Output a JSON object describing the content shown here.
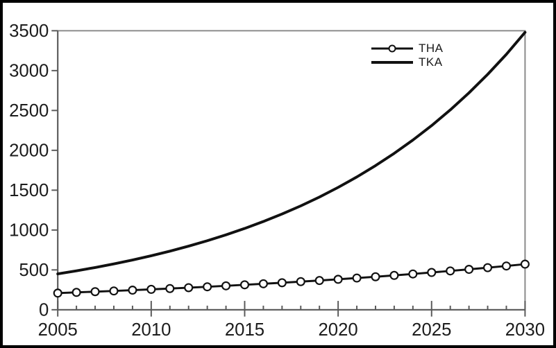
{
  "colors": {
    "background": "#ffffff",
    "outer_border": "#000000",
    "frame_line": "#8a8a8a",
    "axis_line": "#5a5a5a",
    "tick_line": "#5a5a5a",
    "tick_label": "#1c1c1c",
    "series_line": "#111111",
    "marker_fill": "#ffffff",
    "marker_stroke": "#111111"
  },
  "chart_data": {
    "type": "line",
    "title": "",
    "xlabel": "",
    "ylabel": "",
    "grid": false,
    "legend_position": "top-right-inside",
    "xlim": [
      2005,
      2030
    ],
    "ylim": [
      0,
      3500
    ],
    "x_major_ticks": [
      2005,
      2010,
      2015,
      2020,
      2025,
      2030
    ],
    "x_minor_tick_step": 1,
    "y_ticks": [
      0,
      500,
      1000,
      1500,
      2000,
      2500,
      3000,
      3500
    ],
    "x": [
      2005,
      2006,
      2007,
      2008,
      2009,
      2010,
      2011,
      2012,
      2013,
      2014,
      2015,
      2016,
      2017,
      2018,
      2019,
      2020,
      2021,
      2022,
      2023,
      2024,
      2025,
      2026,
      2027,
      2028,
      2029,
      2030
    ],
    "series": [
      {
        "name": "THA",
        "marker": "circle",
        "line_width": 3,
        "values": [
          209,
          218,
          227,
          236,
          246,
          256,
          266,
          277,
          288,
          300,
          313,
          326,
          339,
          353,
          367,
          382,
          398,
          414,
          431,
          449,
          468,
          487,
          507,
          528,
          549,
          572
        ]
      },
      {
        "name": "TKA",
        "marker": "none",
        "line_width": 4,
        "values": [
          450,
          488,
          530,
          575,
          624,
          677,
          735,
          798,
          866,
          940,
          1020,
          1107,
          1201,
          1303,
          1414,
          1535,
          1666,
          1808,
          1962,
          2129,
          2310,
          2507,
          2721,
          2953,
          3204,
          3480
        ]
      }
    ]
  }
}
